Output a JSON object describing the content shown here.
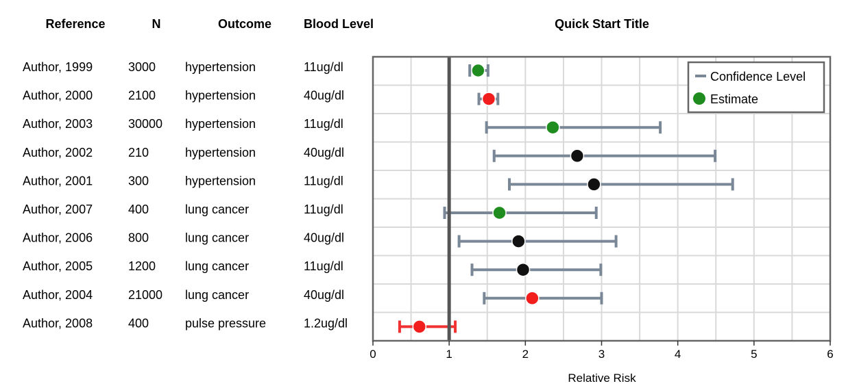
{
  "table": {
    "headers": {
      "reference": "Reference",
      "n": "N",
      "outcome": "Outcome",
      "blood_level": "Blood Level"
    },
    "rows": [
      {
        "reference": "Author, 1999",
        "n": "3000",
        "outcome": "hypertension",
        "blood_level": "11ug/dl"
      },
      {
        "reference": "Author, 2000",
        "n": "2100",
        "outcome": "hypertension",
        "blood_level": "40ug/dl"
      },
      {
        "reference": "Author, 2003",
        "n": "30000",
        "outcome": "hypertension",
        "blood_level": "11ug/dl"
      },
      {
        "reference": "Author, 2002",
        "n": "210",
        "outcome": "hypertension",
        "blood_level": "40ug/dl"
      },
      {
        "reference": "Author, 2001",
        "n": "300",
        "outcome": "hypertension",
        "blood_level": "11ug/dl"
      },
      {
        "reference": "Author, 2007",
        "n": "400",
        "outcome": "lung cancer",
        "blood_level": "11ug/dl"
      },
      {
        "reference": "Author, 2006",
        "n": "800",
        "outcome": "lung cancer",
        "blood_level": "40ug/dl"
      },
      {
        "reference": "Author, 2005",
        "n": "1200",
        "outcome": "lung cancer",
        "blood_level": "11ug/dl"
      },
      {
        "reference": "Author, 2004",
        "n": "21000",
        "outcome": "lung cancer",
        "blood_level": "40ug/dl"
      },
      {
        "reference": "Author, 2008",
        "n": "400",
        "outcome": "pulse pressure",
        "blood_level": "1.2ug/dl"
      }
    ]
  },
  "chart_data": {
    "type": "scatter",
    "title": "Quick Start Title",
    "xlabel": "Relative Risk",
    "ylabel": "",
    "xlim": [
      0,
      6
    ],
    "xticks": [
      0,
      1,
      2,
      3,
      4,
      5,
      6
    ],
    "reference_line": 1,
    "grid": true,
    "legend": {
      "position": "top-right",
      "entries": [
        "Confidence Level",
        "Estimate"
      ]
    },
    "colors": {
      "green": "#1e8c1e",
      "red": "#f21d1d",
      "black": "#111111",
      "ci_gray": "#7a8796",
      "ci_red": "#f03232"
    },
    "points": [
      {
        "estimate": 1.38,
        "lower": 1.27,
        "upper": 1.51,
        "color": "green"
      },
      {
        "estimate": 1.52,
        "lower": 1.39,
        "upper": 1.64,
        "color": "red"
      },
      {
        "estimate": 2.36,
        "lower": 1.49,
        "upper": 3.77,
        "color": "green"
      },
      {
        "estimate": 2.68,
        "lower": 1.59,
        "upper": 4.49,
        "color": "black"
      },
      {
        "estimate": 2.9,
        "lower": 1.79,
        "upper": 4.72,
        "color": "black"
      },
      {
        "estimate": 1.66,
        "lower": 0.94,
        "upper": 2.93,
        "color": "green"
      },
      {
        "estimate": 1.91,
        "lower": 1.13,
        "upper": 3.19,
        "color": "black"
      },
      {
        "estimate": 1.97,
        "lower": 1.3,
        "upper": 2.99,
        "color": "black"
      },
      {
        "estimate": 2.09,
        "lower": 1.46,
        "upper": 3.0,
        "color": "red"
      },
      {
        "estimate": 0.61,
        "lower": 0.35,
        "upper": 1.08,
        "color": "red"
      }
    ]
  }
}
